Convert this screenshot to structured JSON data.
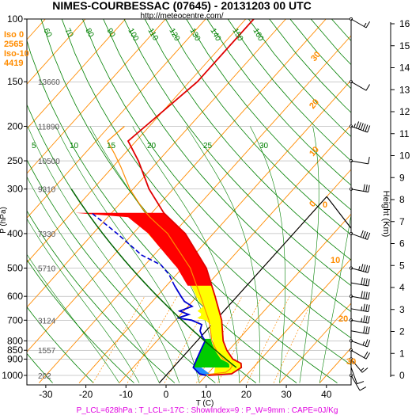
{
  "header": {
    "title": "NIMES-COURBESSAC (07645) - 20131203 00 UTC",
    "url": "http://meteocentre.com/"
  },
  "freezing_info": {
    "lines": [
      "Iso 0",
      "2565",
      "Iso-10",
      "4419"
    ]
  },
  "footer": {
    "text": "P_LCL=628hPa : T_LCL=-17C : ShowIndex=9 : P_W=9mm : CAPE=0J/Kg"
  },
  "colors": {
    "temperature": "#e00000",
    "dewpoint": "#0000d0",
    "dry_adiabat": "#008000",
    "isotherm": "#ff8c00",
    "cape_fill": "#ff0000",
    "cin_fill": "#ffff00",
    "annotation": "#e000e0"
  },
  "chart_data": {
    "type": "skew-t",
    "title": "NIMES-COURBESSAC (07645) - 20131203 00 UTC",
    "xlabel": "T (C)",
    "ylabel": "P (hPa)",
    "y2label": "Height (Km)",
    "x_ticks": [
      -30,
      -20,
      -10,
      0,
      10,
      20,
      30,
      40
    ],
    "x_tick_labels": [
      "-30",
      "-20",
      "-10",
      "0",
      "10",
      "20",
      "30",
      "40"
    ],
    "pressure_ticks": [
      100,
      150,
      200,
      250,
      300,
      400,
      500,
      600,
      700,
      800,
      850,
      900,
      1000
    ],
    "pressure_tick_labels": [
      "100",
      "150",
      "200",
      "250",
      "300",
      "400",
      "500",
      "600",
      "700",
      "800",
      "850",
      "900",
      "1000"
    ],
    "height_ticks_km": [
      0,
      1,
      2,
      3,
      4,
      5,
      6,
      7,
      8,
      9,
      10,
      11,
      12,
      13,
      14,
      15,
      16
    ],
    "height_tick_labels": [
      "0",
      "1",
      "2",
      "3",
      "4",
      "5",
      "6",
      "7",
      "8",
      "9",
      "10",
      "11",
      "12",
      "13",
      "14",
      "15",
      "16"
    ],
    "geopotential_labels": [
      {
        "p": 150,
        "text": "13660"
      },
      {
        "p": 200,
        "text": "11890"
      },
      {
        "p": 250,
        "text": "10500"
      },
      {
        "p": 300,
        "text": "9310"
      },
      {
        "p": 400,
        "text": "7330"
      },
      {
        "p": 500,
        "text": "5710"
      },
      {
        "p": 700,
        "text": "3124"
      },
      {
        "p": 850,
        "text": "1557"
      },
      {
        "p": 1000,
        "text": "202"
      }
    ],
    "isotherm_labels": [
      {
        "t": 0,
        "text": "0"
      },
      {
        "t": 10,
        "text": "10"
      },
      {
        "t": 20,
        "text": "20"
      },
      {
        "t": 30,
        "text": "30"
      }
    ],
    "dry_adiabat_labels_top": [
      "60",
      "70",
      "80",
      "90",
      "100",
      "110",
      "120",
      "130",
      "140",
      "150",
      "160"
    ],
    "mixing_ratio_labels": [
      "5",
      "10",
      "15",
      "20",
      "25",
      "30"
    ],
    "temperature_profile": [
      {
        "p": 1000,
        "t": 10.5
      },
      {
        "p": 990,
        "t": 16.0
      },
      {
        "p": 950,
        "t": 17.0
      },
      {
        "p": 925,
        "t": 16.0
      },
      {
        "p": 900,
        "t": 13.0
      },
      {
        "p": 850,
        "t": 9.5
      },
      {
        "p": 800,
        "t": 6.5
      },
      {
        "p": 700,
        "t": 1.5
      },
      {
        "p": 600,
        "t": -5.5
      },
      {
        "p": 500,
        "t": -14.0
      },
      {
        "p": 400,
        "t": -27.0
      },
      {
        "p": 350,
        "t": -37.0
      },
      {
        "p": 300,
        "t": -46.0
      },
      {
        "p": 250,
        "t": -55.0
      },
      {
        "p": 220,
        "t": -62.0
      },
      {
        "p": 200,
        "t": -61.0
      },
      {
        "p": 150,
        "t": -58.0
      },
      {
        "p": 100,
        "t": -58.0
      }
    ],
    "dewpoint_profile": [
      {
        "p": 1000,
        "t": 10.0
      },
      {
        "p": 990,
        "t": 8.0
      },
      {
        "p": 950,
        "t": 5.0
      },
      {
        "p": 900,
        "t": 4.0
      },
      {
        "p": 850,
        "t": 3.0
      },
      {
        "p": 800,
        "t": 2.0
      },
      {
        "p": 780,
        "t": 0.5
      },
      {
        "p": 750,
        "t": -1.5
      },
      {
        "p": 720,
        "t": -2.5
      },
      {
        "p": 700,
        "t": -6.0
      },
      {
        "p": 690,
        "t": -10.0
      },
      {
        "p": 675,
        "t": -8.0
      },
      {
        "p": 660,
        "t": -11.0
      },
      {
        "p": 640,
        "t": -9.0
      },
      {
        "p": 620,
        "t": -12.0
      },
      {
        "p": 600,
        "t": -14.0
      },
      {
        "p": 560,
        "t": -18.0
      },
      {
        "p": 520,
        "t": -22.0
      },
      {
        "p": 490,
        "t": -26.0
      },
      {
        "p": 460,
        "t": -33.0
      },
      {
        "p": 400,
        "t": -44.0
      },
      {
        "p": 350,
        "t": -55.0
      }
    ],
    "grid": true
  },
  "wind_barbs": [
    {
      "p": 1000,
      "dir": 330,
      "kt": 10
    },
    {
      "p": 950,
      "dir": 340,
      "kt": 10
    },
    {
      "p": 900,
      "dir": 320,
      "kt": 15
    },
    {
      "p": 850,
      "dir": 300,
      "kt": 20
    },
    {
      "p": 800,
      "dir": 290,
      "kt": 25
    },
    {
      "p": 750,
      "dir": 280,
      "kt": 30
    },
    {
      "p": 700,
      "dir": 280,
      "kt": 35
    },
    {
      "p": 650,
      "dir": 280,
      "kt": 35
    },
    {
      "p": 600,
      "dir": 280,
      "kt": 40
    },
    {
      "p": 550,
      "dir": 280,
      "kt": 40
    },
    {
      "p": 500,
      "dir": 285,
      "kt": 45
    },
    {
      "p": 400,
      "dir": 290,
      "kt": 40
    },
    {
      "p": 300,
      "dir": 280,
      "kt": 30
    },
    {
      "p": 250,
      "dir": 280,
      "kt": 10
    },
    {
      "p": 200,
      "dir": 290,
      "kt": 65
    },
    {
      "p": 150,
      "dir": 300,
      "kt": 10
    },
    {
      "p": 100,
      "dir": 300,
      "kt": 15
    }
  ]
}
